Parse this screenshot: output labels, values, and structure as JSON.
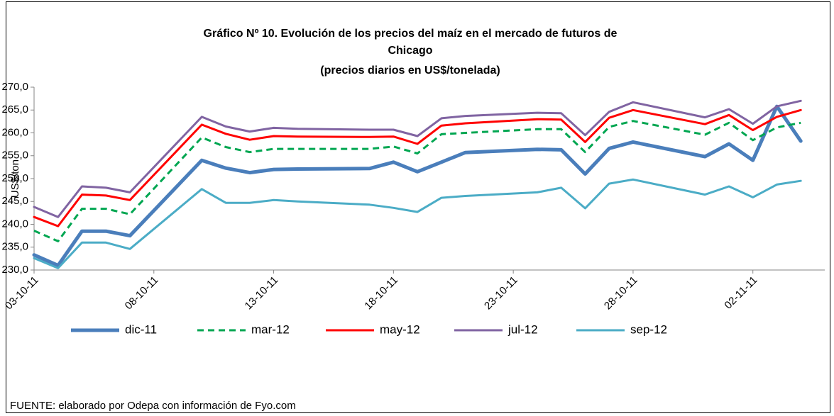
{
  "chart_data": {
    "type": "line",
    "title": [
      "Gráfico Nº 10. Evolución de los precios del maíz en el mercado de futuros de",
      "Chicago",
      "(precios diarios en US$/tonelada)"
    ],
    "y_label": "US$/ton",
    "source": "FUENTE: elaborado por Odepa con información de Fyo.com",
    "x": [
      "03-10-11",
      "04-10-11",
      "05-10-11",
      "06-10-11",
      "07-10-11",
      "10-10-11",
      "11-10-11",
      "12-10-11",
      "13-10-11",
      "14-10-11",
      "17-10-11",
      "18-10-11",
      "19-10-11",
      "20-10-11",
      "21-10-11",
      "24-10-11",
      "25-10-11",
      "26-10-11",
      "27-10-11",
      "28-10-11",
      "31-10-11",
      "01-11-11",
      "02-11-11",
      "03-11-11",
      "04-11-11"
    ],
    "xlim": [
      "03-10-11",
      "05-11-11"
    ],
    "xticks": [
      "03-10-11",
      "08-10-11",
      "13-10-11",
      "18-10-11",
      "23-10-11",
      "28-10-11",
      "02-11-11"
    ],
    "ylim": [
      230,
      270
    ],
    "yticks": [
      {
        "value": 230,
        "label": "230,0"
      },
      {
        "value": 235,
        "label": "235,0"
      },
      {
        "value": 240,
        "label": "240,0"
      },
      {
        "value": 245,
        "label": "245,0"
      },
      {
        "value": 250,
        "label": "250,0"
      },
      {
        "value": 255,
        "label": "255,0"
      },
      {
        "value": 260,
        "label": "260,0"
      },
      {
        "value": 265,
        "label": "265,0"
      },
      {
        "value": 270,
        "label": "270,0"
      }
    ],
    "grid": false,
    "legend": "bottom",
    "series": [
      {
        "name": "dic-11",
        "color": "#4a7ebb",
        "width": 5,
        "dashed": false,
        "values": [
          233.3,
          231.0,
          238.5,
          238.5,
          237.5,
          254.0,
          252.3,
          251.3,
          252.0,
          252.1,
          252.2,
          253.6,
          251.5,
          253.6,
          255.7,
          256.4,
          256.3,
          251.0,
          256.6,
          258.0,
          254.8,
          257.6,
          254.0,
          265.8,
          258.2
        ]
      },
      {
        "name": "mar-12",
        "color": "#00a651",
        "width": 3,
        "dashed": true,
        "values": [
          238.6,
          236.3,
          243.4,
          243.4,
          242.2,
          259.0,
          256.9,
          255.8,
          256.5,
          256.5,
          256.5,
          257.0,
          255.5,
          259.7,
          260.0,
          260.8,
          260.8,
          255.8,
          261.3,
          262.6,
          259.6,
          262.2,
          258.4,
          261.2,
          262.2
        ]
      },
      {
        "name": "may-12",
        "color": "#ff0000",
        "width": 3,
        "dashed": false,
        "values": [
          241.6,
          239.6,
          246.5,
          246.3,
          245.3,
          261.8,
          259.8,
          258.5,
          259.3,
          259.2,
          259.1,
          259.2,
          257.6,
          261.6,
          262.1,
          263.0,
          262.9,
          258.0,
          263.3,
          265.0,
          261.9,
          263.9,
          260.6,
          263.5,
          265.0
        ]
      },
      {
        "name": "jul-12",
        "color": "#8064a2",
        "width": 3,
        "dashed": false,
        "values": [
          243.8,
          241.6,
          248.3,
          248.0,
          247.0,
          263.5,
          261.4,
          260.3,
          261.1,
          260.9,
          260.7,
          260.7,
          259.3,
          263.2,
          263.7,
          264.4,
          264.3,
          259.5,
          264.6,
          266.7,
          263.4,
          265.2,
          262.0,
          265.8,
          267.0
        ]
      },
      {
        "name": "sep-12",
        "color": "#4bacc6",
        "width": 3,
        "dashed": false,
        "values": [
          232.6,
          230.4,
          236.0,
          236.0,
          234.6,
          247.7,
          244.7,
          244.7,
          245.3,
          245.0,
          244.3,
          243.6,
          242.7,
          245.8,
          246.2,
          247.0,
          248.0,
          243.5,
          248.9,
          249.8,
          246.5,
          248.3,
          245.9,
          248.7,
          249.5
        ]
      }
    ]
  }
}
